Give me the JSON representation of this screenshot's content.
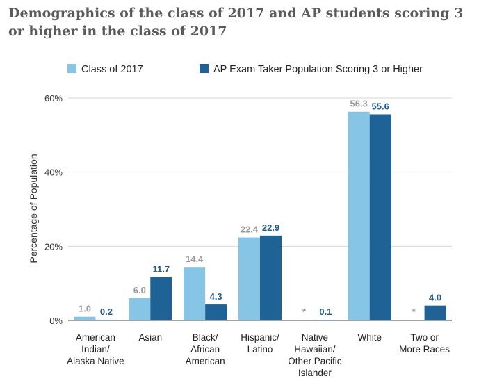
{
  "chart_data": {
    "type": "bar",
    "title": "Demographics of the class of 2017 and AP students scoring 3 or higher in the class of 2017",
    "ylabel": "Percentage of Population",
    "xlabel": "",
    "ylim": [
      0,
      60
    ],
    "yticks": [
      "0%",
      "20%",
      "40%",
      "60%"
    ],
    "legend_position": "top",
    "categories": [
      [
        "American",
        "Indian/",
        "Alaska Native"
      ],
      [
        "Asian"
      ],
      [
        "Black/",
        "African",
        "American"
      ],
      [
        "Hispanic/",
        "Latino"
      ],
      [
        "Native",
        "Hawaiian/",
        "Other Pacific",
        "Islander"
      ],
      [
        "White"
      ],
      [
        "Two or",
        "More Races"
      ]
    ],
    "series": [
      {
        "name": "Class of 2017",
        "color": "#86c5e6",
        "label_color": "#9a9a9a",
        "values": [
          1.0,
          6.0,
          14.4,
          22.4,
          null,
          56.3,
          null
        ],
        "labels": [
          "1.0",
          "6.0",
          "14.4",
          "22.4",
          "*",
          "56.3",
          "*"
        ]
      },
      {
        "name": "AP Exam Taker Population Scoring 3 or Higher",
        "color": "#1f6296",
        "label_color": "#1f5d8c",
        "values": [
          0.2,
          11.7,
          4.3,
          22.9,
          0.1,
          55.6,
          4.0
        ],
        "labels": [
          "0.2",
          "11.7",
          "4.3",
          "22.9",
          "0.1",
          "55.6",
          "4.0"
        ]
      }
    ],
    "grid": "horizontal"
  }
}
